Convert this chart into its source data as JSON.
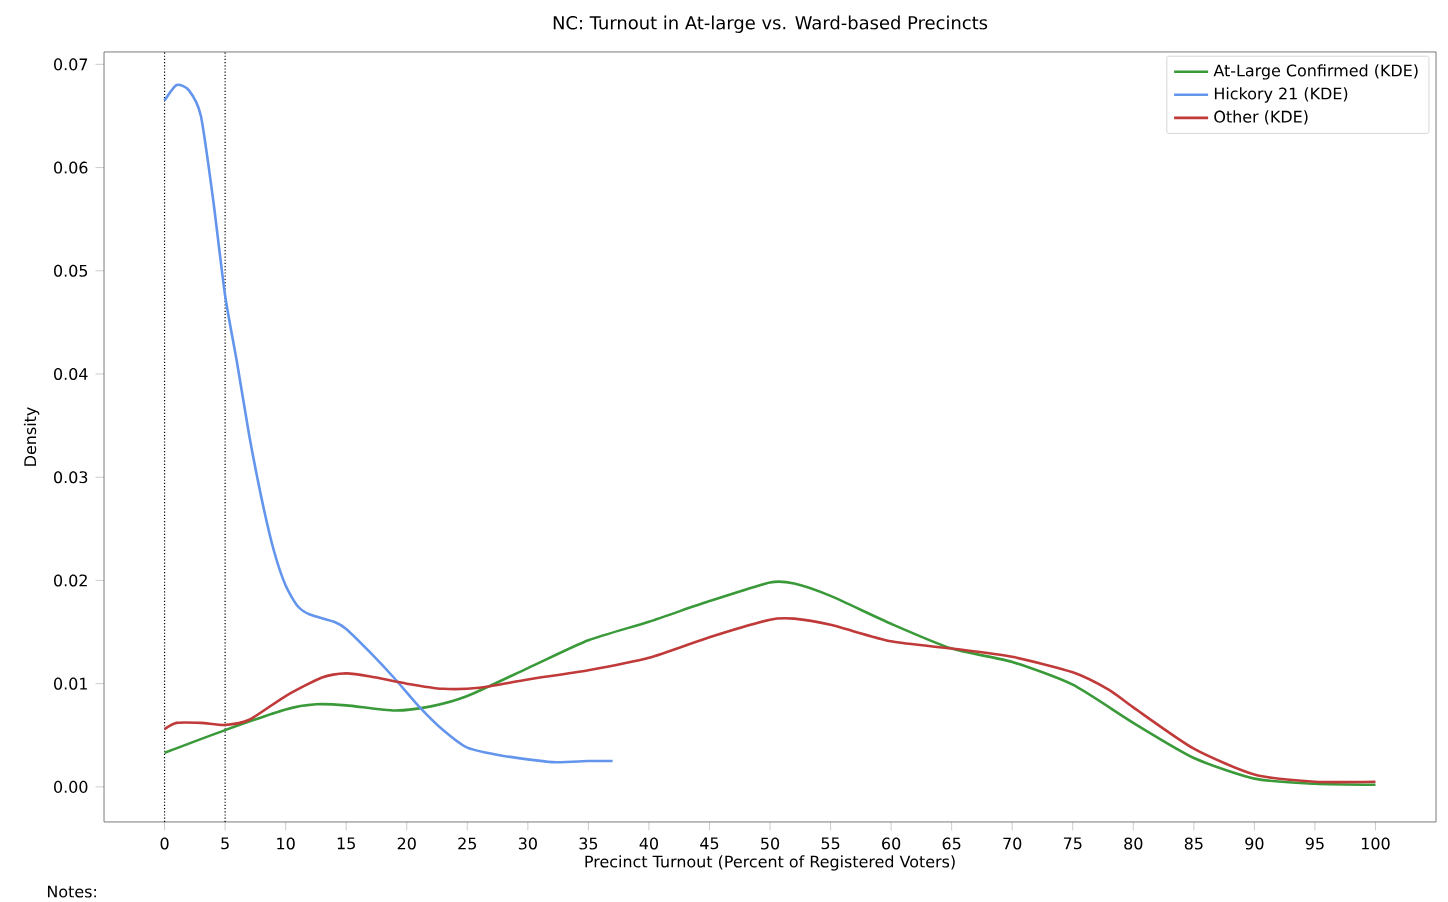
{
  "chart_data": {
    "type": "line",
    "title": "NC: Turnout in At-large vs. Ward-based Precincts",
    "xlabel": "Precinct Turnout (Percent of Registered Voters)",
    "ylabel": "Density",
    "xlim": [
      -5,
      105
    ],
    "ylim": [
      -0.0034,
      0.0712
    ],
    "xticks": [
      0,
      5,
      10,
      15,
      20,
      25,
      30,
      35,
      40,
      45,
      50,
      55,
      60,
      65,
      70,
      75,
      80,
      85,
      90,
      95,
      100
    ],
    "yticks": [
      {
        "value": 0,
        "label": "0.00"
      },
      {
        "value": 0.01,
        "label": "0.01"
      },
      {
        "value": 0.02,
        "label": "0.02"
      },
      {
        "value": 0.03,
        "label": "0.03"
      },
      {
        "value": 0.04,
        "label": "0.04"
      },
      {
        "value": 0.05,
        "label": "0.05"
      },
      {
        "value": 0.06,
        "label": "0.06"
      },
      {
        "value": 0.07,
        "label": "0.07"
      }
    ],
    "legend": "top right",
    "grid": false,
    "series": [
      {
        "name": "At-Large Confirmed (KDE)",
        "color": "#3a9a3a",
        "x": [
          0,
          5,
          10,
          12.5,
          15,
          19,
          22,
          25,
          30,
          35,
          40,
          45,
          50,
          52,
          55,
          60,
          65,
          70,
          75,
          80,
          85,
          90,
          95,
          100
        ],
        "values": [
          0.0033,
          0.0055,
          0.0075,
          0.008,
          0.0079,
          0.0074,
          0.0078,
          0.0088,
          0.0115,
          0.0142,
          0.016,
          0.018,
          0.0198,
          0.0197,
          0.0185,
          0.0158,
          0.0134,
          0.0121,
          0.0099,
          0.0062,
          0.0028,
          0.0008,
          0.0003,
          0.0002
        ]
      },
      {
        "name": "Hickory 21 (KDE)",
        "color": "#6495ed",
        "x": [
          0,
          1,
          2,
          3,
          4,
          5,
          6,
          7,
          8,
          9,
          10,
          11,
          12,
          14,
          15,
          17,
          19,
          21,
          23,
          25,
          28,
          32,
          35,
          37
        ],
        "values": [
          0.0665,
          0.068,
          0.0675,
          0.065,
          0.057,
          0.0476,
          0.041,
          0.034,
          0.028,
          0.023,
          0.0195,
          0.0175,
          0.0167,
          0.016,
          0.0153,
          0.013,
          0.0105,
          0.0078,
          0.0055,
          0.0038,
          0.003,
          0.0024,
          0.0025,
          0.0025
        ]
      },
      {
        "name": "Other (KDE)",
        "color": "#c03a3a",
        "x": [
          0,
          1,
          3,
          5,
          7,
          10,
          13,
          15,
          17,
          20,
          23,
          26,
          30,
          35,
          40,
          45,
          50,
          52,
          55,
          60,
          65,
          70,
          75,
          78,
          80,
          85,
          90,
          95,
          100
        ],
        "values": [
          0.0056,
          0.0062,
          0.0062,
          0.006,
          0.0065,
          0.0088,
          0.0106,
          0.011,
          0.0107,
          0.01,
          0.0095,
          0.0096,
          0.0104,
          0.0113,
          0.0125,
          0.0145,
          0.0162,
          0.0163,
          0.0157,
          0.0141,
          0.0134,
          0.0126,
          0.0111,
          0.0094,
          0.0077,
          0.0037,
          0.0012,
          0.0005,
          0.0005
        ]
      }
    ],
    "ref_lines": [
      {
        "axis": "x",
        "value": 0,
        "line_style": "dotted"
      },
      {
        "axis": "x",
        "value": 5,
        "line_style": "dotted"
      }
    ],
    "annotations": [
      "Notes:"
    ]
  }
}
